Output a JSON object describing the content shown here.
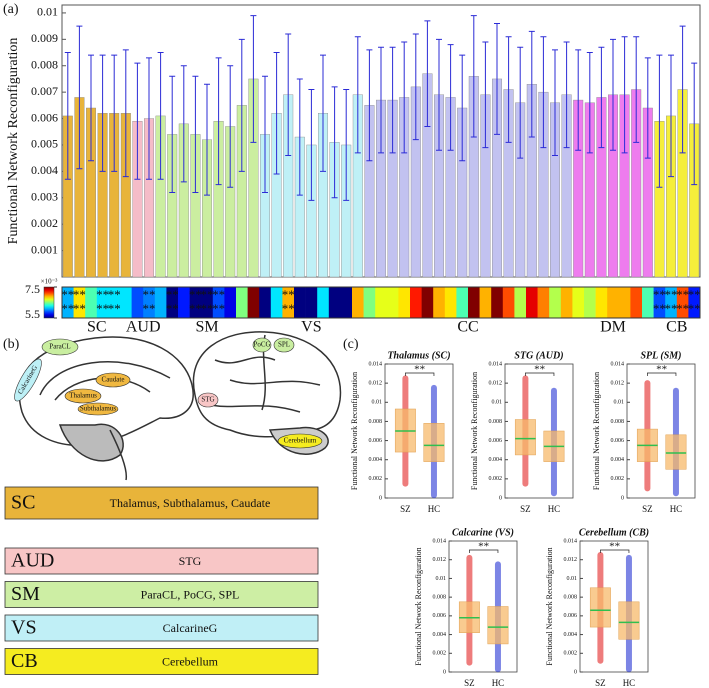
{
  "panels": [
    "(a)",
    "(b)",
    "(c)"
  ],
  "chart_data": [
    {
      "type": "bar",
      "ylabel": "Functional Network Reconfiguration",
      "ylim": [
        0,
        0.0103
      ],
      "yticks": [
        0.001,
        0.002,
        0.003,
        0.004,
        0.005,
        0.006,
        0.007,
        0.008,
        0.009,
        0.01
      ],
      "error_color": "#2b2bd6",
      "sig_label": "**",
      "colorbar": {
        "clim": [
          0.0055,
          0.0075
        ],
        "scale_label": "×10⁻³",
        "ticks": [
          {
            "value": 0.0075,
            "label": "7.5"
          },
          {
            "value": 0.0055,
            "label": "5.5"
          }
        ]
      },
      "series": [
        {
          "name": "SC",
          "color": "#e8b43a",
          "values": [
            0.0061,
            0.0068,
            0.0064,
            0.0062,
            0.0062,
            0.0062
          ],
          "errors": [
            0.0024,
            0.0027,
            0.002,
            0.0022,
            0.0022,
            0.0024
          ],
          "significant": [
            true,
            true,
            false,
            true,
            true,
            false
          ]
        },
        {
          "name": "AUD",
          "color": "#f5bcc8",
          "values": [
            0.0059,
            0.006
          ],
          "errors": [
            0.0022,
            0.0023
          ],
          "significant": [
            false,
            true
          ]
        },
        {
          "name": "SM",
          "color": "#cbeea0",
          "values": [
            0.0061,
            0.0054,
            0.0058,
            0.0054,
            0.0052,
            0.0059,
            0.0057,
            0.0065,
            0.0075
          ],
          "errors": [
            0.0024,
            0.0022,
            0.0022,
            0.0022,
            0.0021,
            0.0024,
            0.0023,
            0.0025,
            0.0024
          ],
          "significant": [
            false,
            true,
            false,
            true,
            true,
            true,
            false,
            false,
            false
          ]
        },
        {
          "name": "VS",
          "color": "#bff0f6",
          "values": [
            0.0054,
            0.0062,
            0.0069,
            0.0053,
            0.005,
            0.0062,
            0.0051,
            0.005,
            0.0069
          ],
          "errors": [
            0.0022,
            0.0023,
            0.0023,
            0.0022,
            0.0021,
            0.0022,
            0.0021,
            0.0021,
            0.0022
          ],
          "significant": [
            false,
            false,
            true,
            false,
            false,
            false,
            false,
            false,
            false
          ]
        },
        {
          "name": "CC",
          "color": "#c2c2f0",
          "values": [
            0.0065,
            0.0067,
            0.0067,
            0.0068,
            0.0072,
            0.0077,
            0.0069,
            0.0068,
            0.0064,
            0.0076,
            0.0069,
            0.0075,
            0.0071,
            0.0066,
            0.0073,
            0.007,
            0.0066,
            0.0069
          ],
          "errors": [
            0.0021,
            0.002,
            0.002,
            0.0021,
            0.002,
            0.002,
            0.0021,
            0.002,
            0.002,
            0.0023,
            0.002,
            0.0021,
            0.002,
            0.0021,
            0.002,
            0.0021,
            0.002,
            0.002
          ],
          "significant": [
            false,
            false,
            false,
            false,
            false,
            false,
            false,
            false,
            false,
            false,
            false,
            false,
            false,
            false,
            false,
            false,
            false,
            false
          ]
        },
        {
          "name": "DM",
          "color": "#ee7cee",
          "values": [
            0.0067,
            0.0066,
            0.0068,
            0.0069,
            0.0069,
            0.0071,
            0.0064
          ],
          "errors": [
            0.0019,
            0.0019,
            0.0019,
            0.0021,
            0.0022,
            0.002,
            0.0019
          ],
          "significant": [
            false,
            false,
            false,
            false,
            false,
            false,
            false
          ]
        },
        {
          "name": "CB",
          "color": "#f5ee3a",
          "values": [
            0.0059,
            0.0061,
            0.0071,
            0.0058
          ],
          "errors": [
            0.0025,
            0.0023,
            0.0024,
            0.0023
          ],
          "significant": [
            true,
            true,
            true,
            true
          ]
        }
      ]
    },
    {
      "type": "box",
      "title": "Thalamus (SC)",
      "ylabel": "Functional Network Reconfiguration",
      "categories": [
        "SZ",
        "HC"
      ],
      "colors": [
        "#e01010",
        "#1020d0"
      ],
      "annotation": "**",
      "ylim": [
        0,
        0.014
      ],
      "yticks": [
        0,
        0.002,
        0.004,
        0.006,
        0.008,
        0.01,
        0.012,
        0.014
      ],
      "boxes": [
        {
          "min": 0.0015,
          "q1": 0.0048,
          "median": 0.007,
          "q3": 0.0093,
          "max": 0.0125
        },
        {
          "min": 0.0003,
          "q1": 0.0038,
          "median": 0.0055,
          "q3": 0.0078,
          "max": 0.0115
        }
      ]
    },
    {
      "type": "box",
      "title": "STG (AUD)",
      "ylabel": "Functional Network Reconfiguration",
      "categories": [
        "SZ",
        "HC"
      ],
      "colors": [
        "#e01010",
        "#1020d0"
      ],
      "annotation": "**",
      "ylim": [
        0,
        0.014
      ],
      "yticks": [
        0,
        0.002,
        0.004,
        0.006,
        0.008,
        0.01,
        0.012,
        0.014
      ],
      "boxes": [
        {
          "min": 0.0015,
          "q1": 0.0045,
          "median": 0.0062,
          "q3": 0.0082,
          "max": 0.0125
        },
        {
          "min": 0.0005,
          "q1": 0.0038,
          "median": 0.0054,
          "q3": 0.007,
          "max": 0.0112
        }
      ]
    },
    {
      "type": "box",
      "title": "SPL (SM)",
      "ylabel": "Functional Network Reconfiguration",
      "categories": [
        "SZ",
        "HC"
      ],
      "colors": [
        "#e01010",
        "#1020d0"
      ],
      "annotation": "**",
      "ylim": [
        0,
        0.014
      ],
      "yticks": [
        0,
        0.002,
        0.004,
        0.006,
        0.008,
        0.01,
        0.012,
        0.014
      ],
      "boxes": [
        {
          "min": 0.001,
          "q1": 0.0038,
          "median": 0.0055,
          "q3": 0.0072,
          "max": 0.012
        },
        {
          "min": 0.0005,
          "q1": 0.003,
          "median": 0.0047,
          "q3": 0.0066,
          "max": 0.0112
        }
      ]
    },
    {
      "type": "box",
      "title": "Calcarine (VS)",
      "ylabel": "Functional Network Reconfiguration",
      "categories": [
        "SZ",
        "HC"
      ],
      "colors": [
        "#e01010",
        "#1020d0"
      ],
      "annotation": "**",
      "ylim": [
        0,
        0.014
      ],
      "yticks": [
        0,
        0.002,
        0.004,
        0.006,
        0.008,
        0.01,
        0.012,
        0.014
      ],
      "boxes": [
        {
          "min": 0.001,
          "q1": 0.0042,
          "median": 0.0058,
          "q3": 0.0075,
          "max": 0.0122
        },
        {
          "min": 0.0003,
          "q1": 0.003,
          "median": 0.0048,
          "q3": 0.007,
          "max": 0.0115
        }
      ]
    },
    {
      "type": "box",
      "title": "Cerebellum (CB)",
      "ylabel": "Functional Network Reconfiguration",
      "categories": [
        "SZ",
        "HC"
      ],
      "colors": [
        "#e01010",
        "#1020d0"
      ],
      "annotation": "**",
      "ylim": [
        0,
        0.014
      ],
      "yticks": [
        0,
        0.002,
        0.004,
        0.006,
        0.008,
        0.01,
        0.012,
        0.014
      ],
      "boxes": [
        {
          "min": 0.0012,
          "q1": 0.0048,
          "median": 0.0066,
          "q3": 0.009,
          "max": 0.0125
        },
        {
          "min": 0.0003,
          "q1": 0.0035,
          "median": 0.0053,
          "q3": 0.0075,
          "max": 0.0122
        }
      ]
    }
  ],
  "brain_labels": [
    "ParaCL",
    "CalcarineG",
    "Caudate",
    "Thalamus",
    "Subthalamus",
    "PoCG",
    "SPL",
    "STG",
    "Cerebellum"
  ],
  "legend_table": [
    {
      "abbr": "SC",
      "regions": "Thalamus, Subthalamus, Caudate",
      "color": "#e8b43a"
    },
    {
      "abbr": "AUD",
      "regions": "STG",
      "color": "#f8c6c6"
    },
    {
      "abbr": "SM",
      "regions": "ParaCL, PoCG, SPL",
      "color": "#cdeea4"
    },
    {
      "abbr": "VS",
      "regions": "CalcarineG",
      "color": "#c0eff6"
    },
    {
      "abbr": "CB",
      "regions": "Cerebellum",
      "color": "#f5ec20"
    }
  ]
}
